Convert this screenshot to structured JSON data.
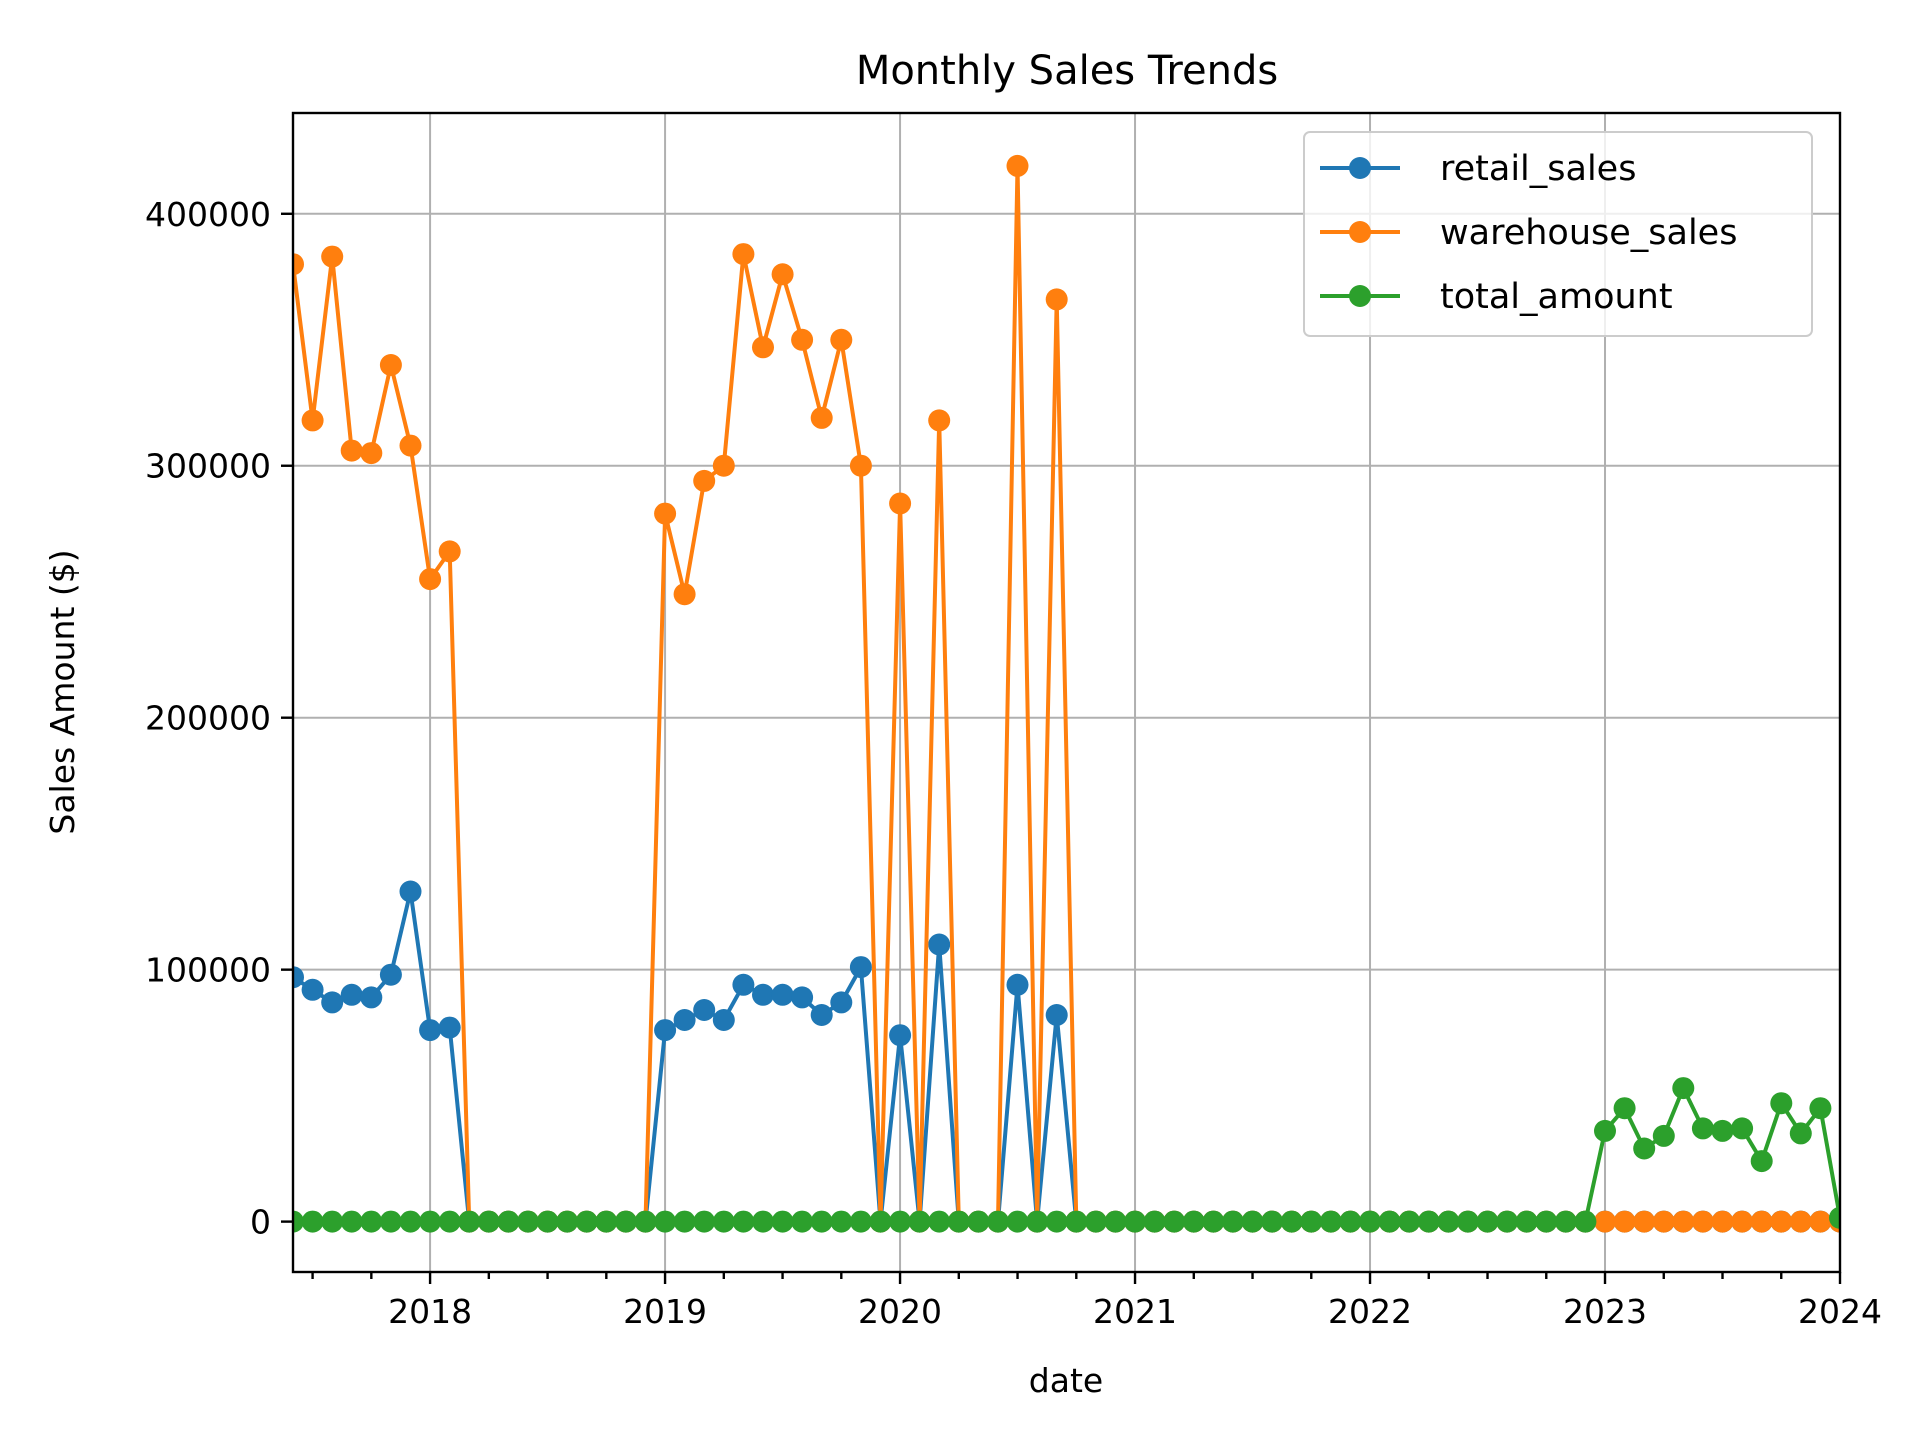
{
  "chart_data": {
    "type": "line",
    "title": "Monthly Sales Trends",
    "xlabel": "date",
    "ylabel": "Sales Amount ($)",
    "x_ticks": [
      "2018",
      "2019",
      "2020",
      "2021",
      "2022",
      "2023",
      "2024"
    ],
    "y_ticks": [
      "0",
      "100000",
      "200000",
      "300000",
      "400000"
    ],
    "xlim": [
      "2017-06",
      "2024-01"
    ],
    "ylim": [
      -20000,
      440000
    ],
    "grid": true,
    "legend_position": "top-right",
    "x": [
      "2017-06",
      "2017-07",
      "2017-08",
      "2017-09",
      "2017-10",
      "2017-11",
      "2017-12",
      "2018-01",
      "2018-02",
      "2018-03",
      "2018-04",
      "2018-05",
      "2018-06",
      "2018-07",
      "2018-08",
      "2018-09",
      "2018-10",
      "2018-11",
      "2018-12",
      "2019-01",
      "2019-02",
      "2019-03",
      "2019-04",
      "2019-05",
      "2019-06",
      "2019-07",
      "2019-08",
      "2019-09",
      "2019-10",
      "2019-11",
      "2019-12",
      "2020-01",
      "2020-02",
      "2020-03",
      "2020-04",
      "2020-05",
      "2020-06",
      "2020-07",
      "2020-08",
      "2020-09",
      "2020-10",
      "2020-11",
      "2020-12",
      "2021-01",
      "2021-02",
      "2021-03",
      "2021-04",
      "2021-05",
      "2021-06",
      "2021-07",
      "2021-08",
      "2021-09",
      "2021-10",
      "2021-11",
      "2021-12",
      "2022-01",
      "2022-02",
      "2022-03",
      "2022-04",
      "2022-05",
      "2022-06",
      "2022-07",
      "2022-08",
      "2022-09",
      "2022-10",
      "2022-11",
      "2022-12",
      "2023-01",
      "2023-02",
      "2023-03",
      "2023-04",
      "2023-05",
      "2023-06",
      "2023-07",
      "2023-08",
      "2023-09",
      "2023-10",
      "2023-11",
      "2023-12",
      "2024-01"
    ],
    "series": [
      {
        "name": "retail_sales",
        "color": "#1f77b4",
        "values": [
          97000,
          92000,
          87000,
          90000,
          89000,
          98000,
          131000,
          76000,
          77000,
          0,
          0,
          0,
          0,
          0,
          0,
          0,
          0,
          0,
          0,
          76000,
          80000,
          84000,
          80000,
          94000,
          90000,
          90000,
          89000,
          82000,
          87000,
          101000,
          0,
          74000,
          0,
          110000,
          0,
          0,
          0,
          94000,
          0,
          82000,
          0,
          0,
          0,
          0,
          0,
          0,
          0,
          0,
          0,
          0,
          0,
          0,
          0,
          0,
          0,
          0,
          0,
          0,
          0,
          0,
          0,
          0,
          0,
          0,
          0,
          0,
          0,
          0,
          0,
          0,
          0,
          0,
          0,
          0,
          0,
          0,
          0,
          0,
          0,
          0
        ]
      },
      {
        "name": "warehouse_sales",
        "color": "#ff7f0e",
        "values": [
          380000,
          318000,
          383000,
          306000,
          305000,
          340000,
          308000,
          255000,
          266000,
          0,
          0,
          0,
          0,
          0,
          0,
          0,
          0,
          0,
          0,
          281000,
          249000,
          294000,
          300000,
          384000,
          347000,
          376000,
          350000,
          319000,
          350000,
          300000,
          0,
          285000,
          0,
          318000,
          0,
          0,
          0,
          419000,
          0,
          366000,
          0,
          0,
          0,
          0,
          0,
          0,
          0,
          0,
          0,
          0,
          0,
          0,
          0,
          0,
          0,
          0,
          0,
          0,
          0,
          0,
          0,
          0,
          0,
          0,
          0,
          0,
          0,
          0,
          0,
          0,
          0,
          0,
          0,
          0,
          0,
          0,
          0,
          0,
          0,
          0
        ]
      },
      {
        "name": "total_amount",
        "color": "#2ca02c",
        "values": [
          0,
          0,
          0,
          0,
          0,
          0,
          0,
          0,
          0,
          0,
          0,
          0,
          0,
          0,
          0,
          0,
          0,
          0,
          0,
          0,
          0,
          0,
          0,
          0,
          0,
          0,
          0,
          0,
          0,
          0,
          0,
          0,
          0,
          0,
          0,
          0,
          0,
          0,
          0,
          0,
          0,
          0,
          0,
          0,
          0,
          0,
          0,
          0,
          0,
          0,
          0,
          0,
          0,
          0,
          0,
          0,
          0,
          0,
          0,
          0,
          0,
          0,
          0,
          0,
          0,
          0,
          0,
          36000,
          45000,
          29000,
          34000,
          53000,
          37000,
          36000,
          37000,
          24000,
          47000,
          35000,
          45000,
          1500
        ]
      }
    ]
  }
}
